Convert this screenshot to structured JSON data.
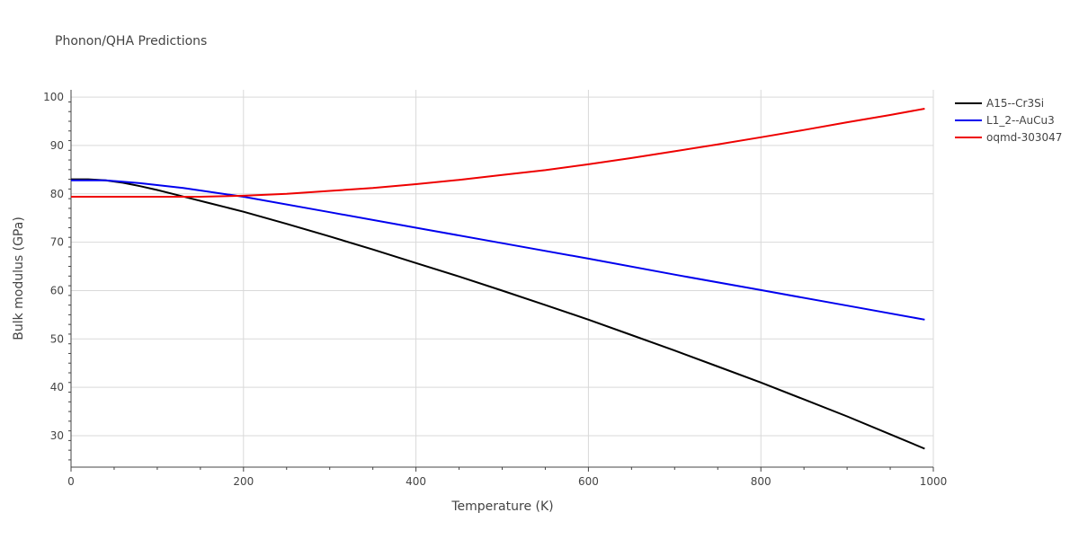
{
  "chart_data": {
    "type": "line",
    "title": "Phonon/QHA Predictions",
    "xlabel": "Temperature (K)",
    "ylabel": "Bulk modulus (GPa)",
    "xlim": [
      0,
      1000
    ],
    "ylim": [
      23.5,
      101.5
    ],
    "xticks": [
      0,
      200,
      400,
      600,
      800,
      1000
    ],
    "yticks": [
      30,
      40,
      50,
      60,
      70,
      80,
      90,
      100
    ],
    "grid": true,
    "legend_position": "top-right",
    "series": [
      {
        "name": "A15--Cr3Si",
        "color": "#000000",
        "x": [
          0,
          20,
          40,
          60,
          80,
          100,
          120,
          140,
          160,
          180,
          200,
          250,
          300,
          350,
          400,
          450,
          500,
          550,
          600,
          650,
          700,
          750,
          800,
          850,
          900,
          950,
          990
        ],
        "y": [
          83.0,
          83.0,
          82.8,
          82.3,
          81.6,
          80.8,
          79.9,
          79.0,
          78.1,
          77.2,
          76.3,
          73.8,
          71.2,
          68.5,
          65.7,
          62.9,
          60.0,
          57.0,
          54.0,
          50.8,
          47.6,
          44.3,
          41.0,
          37.5,
          34.0,
          30.3,
          27.3
        ]
      },
      {
        "name": "L1_2--AuCu3",
        "color": "#0000ee",
        "x": [
          0,
          40,
          80,
          130,
          200,
          300,
          400,
          500,
          600,
          700,
          800,
          900,
          990
        ],
        "y": [
          82.8,
          82.8,
          82.2,
          81.2,
          79.4,
          76.2,
          73.0,
          69.8,
          66.6,
          63.3,
          60.1,
          56.9,
          54.0
        ],
        "show_legend": true
      },
      {
        "name": "oqmd-303047",
        "color": "#ee0000",
        "x": [
          0,
          100,
          150,
          200,
          250,
          300,
          350,
          400,
          450,
          500,
          550,
          600,
          650,
          700,
          750,
          800,
          850,
          900,
          950,
          990
        ],
        "y": [
          79.4,
          79.4,
          79.4,
          79.6,
          80.0,
          80.6,
          81.2,
          82.0,
          82.9,
          83.9,
          84.9,
          86.1,
          87.4,
          88.8,
          90.2,
          91.7,
          93.2,
          94.8,
          96.3,
          97.6
        ]
      }
    ]
  }
}
